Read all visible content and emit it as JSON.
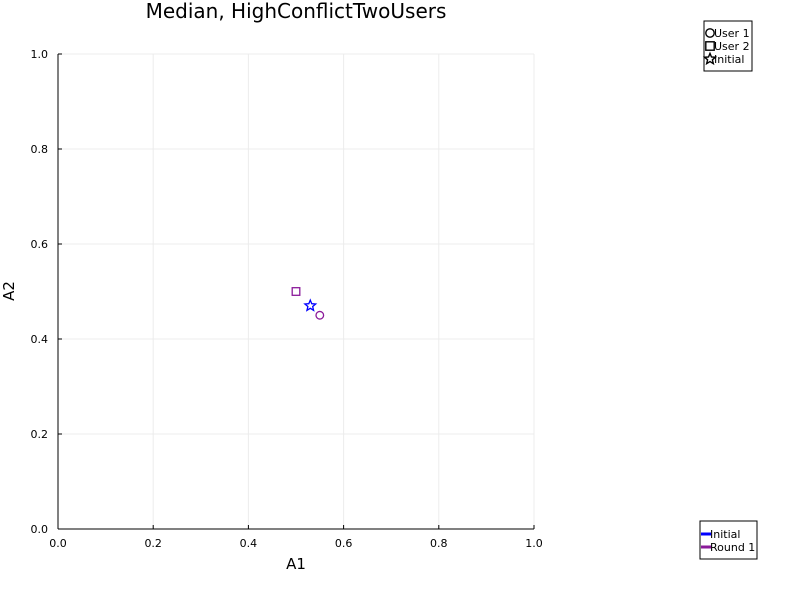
{
  "chart_data": {
    "type": "scatter",
    "title": "Median, HighConflictTwoUsers",
    "xlabel": "A1",
    "ylabel": "A2",
    "xlim": [
      0,
      1
    ],
    "ylim": [
      0,
      1
    ],
    "x_ticks": [
      0.0,
      0.2,
      0.4,
      0.6,
      0.8,
      1.0
    ],
    "y_ticks": [
      0.0,
      0.2,
      0.4,
      0.6,
      0.8,
      1.0
    ],
    "x_tick_labels": [
      "0.0",
      "0.2",
      "0.4",
      "0.6",
      "0.8",
      "1.0"
    ],
    "y_tick_labels": [
      "0.0",
      "0.2",
      "0.4",
      "0.6",
      "0.8",
      "1.0"
    ],
    "grid": true,
    "series": [
      {
        "name": "User 1",
        "marker": "circle",
        "color": "#8b1a9a",
        "points": [
          {
            "x": 0.55,
            "y": 0.45
          }
        ]
      },
      {
        "name": "User 2",
        "marker": "square",
        "color": "#8b1a9a",
        "points": [
          {
            "x": 0.5,
            "y": 0.5
          }
        ]
      },
      {
        "name": "Initial",
        "marker": "star",
        "color": "#0000ff",
        "points": [
          {
            "x": 0.53,
            "y": 0.47
          }
        ]
      }
    ],
    "legends": [
      {
        "placement": "top-right",
        "entries": [
          {
            "label": "User 1",
            "symbol": "circle",
            "color": "#000000"
          },
          {
            "label": "User 2",
            "symbol": "square",
            "color": "#000000"
          },
          {
            "label": "Initial",
            "symbol": "star",
            "color": "#000000"
          }
        ]
      },
      {
        "placement": "bottom-right",
        "entries": [
          {
            "label": "Initial",
            "symbol": "line",
            "color": "#0000ff"
          },
          {
            "label": "Round 1",
            "symbol": "line",
            "color": "#8b1a9a"
          }
        ]
      }
    ]
  }
}
